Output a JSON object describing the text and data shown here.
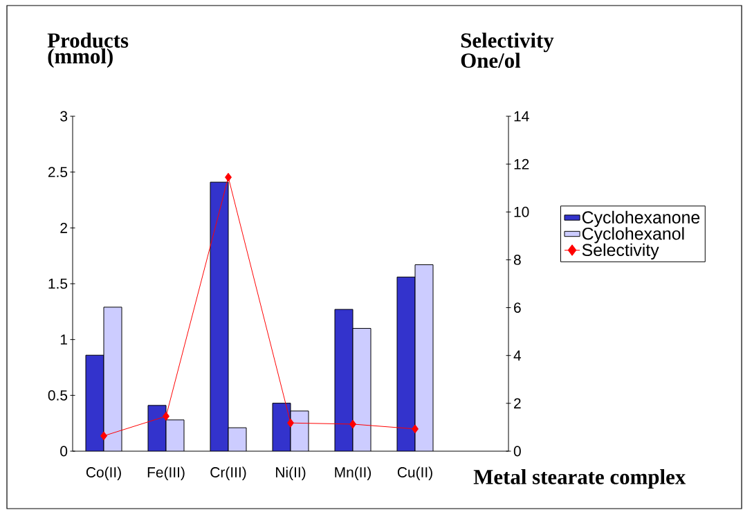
{
  "chart_data": {
    "type": "bar",
    "xlabel": "Metal stearate complex",
    "ylabel": "Products (mmol)",
    "y2label": "Selectivity One/ol",
    "categories": [
      "Co(II)",
      "Fe(III)",
      "Cr(III)",
      "Ni(II)",
      "Mn(II)",
      "Cu(II)",
      null
    ],
    "series": [
      {
        "name": "Cyclohexanone",
        "color": "#3333cc",
        "values": [
          0.86,
          0.41,
          2.41,
          0.43,
          1.27,
          1.56,
          null
        ]
      },
      {
        "name": "Cyclohexanol",
        "color": "#ccccff",
        "values": [
          1.29,
          0.28,
          0.21,
          0.36,
          1.1,
          1.67,
          null
        ]
      },
      {
        "name": "Selectivity",
        "type": "line",
        "axis": "y2",
        "color": "#ff0000",
        "values": [
          0.64,
          1.46,
          11.45,
          1.18,
          1.13,
          0.93,
          null
        ]
      }
    ],
    "ylim": [
      0,
      3
    ],
    "yticks": [
      0,
      0.5,
      1,
      1.5,
      2,
      2.5,
      3
    ],
    "y2lim": [
      0,
      14
    ],
    "y2ticks": [
      0,
      2,
      4,
      6,
      8,
      10,
      12,
      14
    ],
    "legend": "right",
    "marker": "diamond",
    "line_style": "solid",
    "grid": false
  }
}
